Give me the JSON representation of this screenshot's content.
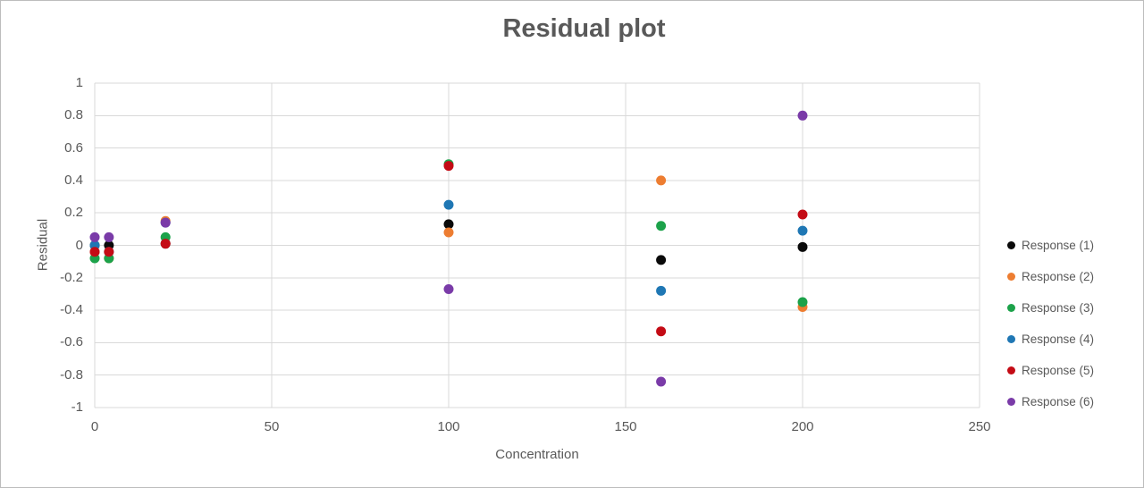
{
  "chart_data": {
    "type": "scatter",
    "title": "Residual plot",
    "xlabel": "Concentration",
    "ylabel": "Residual",
    "xlim": [
      0,
      250
    ],
    "ylim": [
      -1,
      1
    ],
    "grid": true,
    "legend_position": "right",
    "gridline_color": "#d9d9d9",
    "text_color": "#595959",
    "xtick_values": [
      0,
      50,
      100,
      150,
      200,
      250
    ],
    "xtick_labels": [
      "0",
      "50",
      "100",
      "150",
      "200",
      "250"
    ],
    "ytick_values": [
      1,
      0.8,
      0.6,
      0.4,
      0.2,
      0,
      -0.2,
      -0.4,
      -0.6,
      -0.8,
      -1
    ],
    "ytick_labels": [
      "1",
      "0.8",
      "0.6",
      "0.4",
      "0.2",
      "0",
      "-0.2",
      "-0.4",
      "-0.6",
      "-0.8",
      "-1"
    ],
    "x": [
      0,
      4,
      20,
      100,
      160,
      200
    ],
    "series": [
      {
        "name": "Response (1)",
        "color": "#0a0a0a",
        "values": [
          0.0,
          0.0,
          0.01,
          0.13,
          -0.09,
          -0.01
        ]
      },
      {
        "name": "Response (2)",
        "color": "#ed7d31",
        "values": [
          -0.04,
          -0.08,
          0.15,
          0.08,
          0.4,
          -0.38
        ]
      },
      {
        "name": "Response (3)",
        "color": "#1ca24a",
        "values": [
          -0.08,
          -0.08,
          0.05,
          0.5,
          0.12,
          -0.35
        ]
      },
      {
        "name": "Response (4)",
        "color": "#1f77b4",
        "values": [
          0.0,
          -0.04,
          0.14,
          0.25,
          -0.28,
          0.09
        ]
      },
      {
        "name": "Response (5)",
        "color": "#c40b15",
        "values": [
          -0.04,
          -0.04,
          0.01,
          0.49,
          -0.53,
          0.19
        ]
      },
      {
        "name": "Response (6)",
        "color": "#7a3ba8",
        "values": [
          0.05,
          0.05,
          0.14,
          -0.27,
          -0.84,
          0.8
        ]
      }
    ]
  }
}
